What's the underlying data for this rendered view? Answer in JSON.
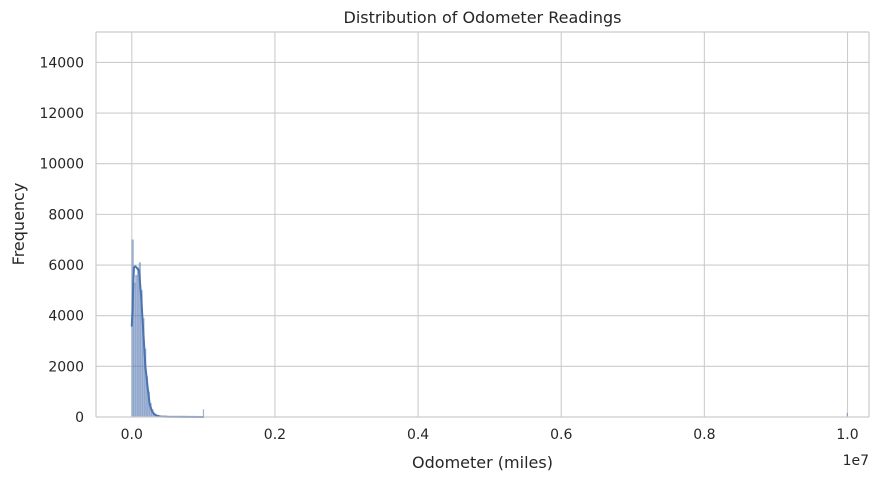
{
  "chart_data": {
    "type": "histogram",
    "title": "Distribution of Odometer Readings",
    "xlabel": "Odometer (miles)",
    "ylabel": "Frequency",
    "x_offset_label": "1e7",
    "xlim": [
      -0.05,
      1.03
    ],
    "ylim": [
      0,
      15200
    ],
    "x_ticks": [
      0.0,
      0.2,
      0.4,
      0.6,
      0.8,
      1.0
    ],
    "x_tick_labels": [
      "0.0",
      "0.2",
      "0.4",
      "0.6",
      "0.8",
      "1.0"
    ],
    "y_ticks": [
      0,
      2000,
      4000,
      6000,
      8000,
      10000,
      12000,
      14000
    ],
    "y_tick_labels": [
      "0",
      "2000",
      "4000",
      "6000",
      "8000",
      "10000",
      "12000",
      "14000"
    ],
    "grid": true,
    "bar_color": "#4c72b0",
    "kde_color": "#4c72b0",
    "bins": [
      {
        "x0": 0.0,
        "x1": 0.0025,
        "count": 7000
      },
      {
        "x0": 0.0025,
        "x1": 0.005,
        "count": 5300
      },
      {
        "x0": 0.005,
        "x1": 0.0075,
        "count": 5600
      },
      {
        "x0": 0.0075,
        "x1": 0.01,
        "count": 5900
      },
      {
        "x0": 0.01,
        "x1": 0.0125,
        "count": 6100
      },
      {
        "x0": 0.0125,
        "x1": 0.015,
        "count": 5000
      },
      {
        "x0": 0.015,
        "x1": 0.0175,
        "count": 3900
      },
      {
        "x0": 0.0175,
        "x1": 0.02,
        "count": 2700
      },
      {
        "x0": 0.02,
        "x1": 0.0225,
        "count": 1600
      },
      {
        "x0": 0.0225,
        "x1": 0.025,
        "count": 1000
      },
      {
        "x0": 0.025,
        "x1": 0.0275,
        "count": 550
      },
      {
        "x0": 0.0275,
        "x1": 0.03,
        "count": 300
      },
      {
        "x0": 0.03,
        "x1": 0.0325,
        "count": 160
      },
      {
        "x0": 0.0325,
        "x1": 0.035,
        "count": 90
      },
      {
        "x0": 0.035,
        "x1": 0.0375,
        "count": 50
      },
      {
        "x0": 0.0375,
        "x1": 0.04,
        "count": 30
      },
      {
        "x0": 0.04,
        "x1": 0.045,
        "count": 15
      },
      {
        "x0": 0.045,
        "x1": 0.05,
        "count": 8
      },
      {
        "x0": 0.0995,
        "x1": 0.1005,
        "count": 300
      },
      {
        "x0": 0.999,
        "x1": 1.0,
        "count": 150
      }
    ],
    "kde": [
      {
        "x": 0.0,
        "y": 3600
      },
      {
        "x": 0.001,
        "y": 4200
      },
      {
        "x": 0.002,
        "y": 5200
      },
      {
        "x": 0.003,
        "y": 5900
      },
      {
        "x": 0.005,
        "y": 5950
      },
      {
        "x": 0.008,
        "y": 5850
      },
      {
        "x": 0.01,
        "y": 5800
      },
      {
        "x": 0.013,
        "y": 4800
      },
      {
        "x": 0.016,
        "y": 3400
      },
      {
        "x": 0.019,
        "y": 2000
      },
      {
        "x": 0.022,
        "y": 1200
      },
      {
        "x": 0.025,
        "y": 500
      },
      {
        "x": 0.028,
        "y": 250
      },
      {
        "x": 0.031,
        "y": 120
      },
      {
        "x": 0.035,
        "y": 50
      },
      {
        "x": 0.04,
        "y": 20
      },
      {
        "x": 0.05,
        "y": 10
      },
      {
        "x": 0.07,
        "y": 3
      },
      {
        "x": 0.1,
        "y": 1
      }
    ]
  }
}
